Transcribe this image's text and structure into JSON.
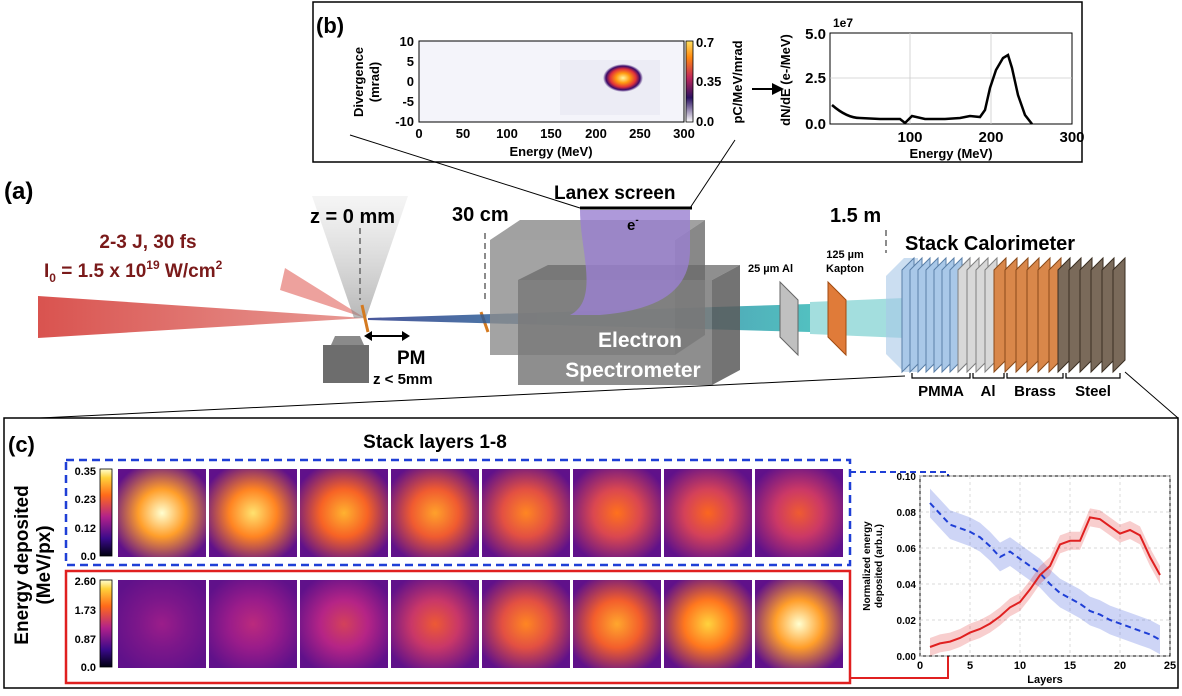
{
  "panel_labels": {
    "a": "(a)",
    "b": "(b)",
    "c": "(c)"
  },
  "laser": {
    "energy_line": "2-3 J, 30 fs",
    "intensity_prefix": "I",
    "intensity_sub": "0",
    "intensity_mid": " = 1.5 x 10",
    "intensity_sup": "19",
    "intensity_unit": " W/cm",
    "intensity_unit_sup": "2"
  },
  "setup": {
    "z0": "z = 0 mm",
    "pm": "PM",
    "pm_range": "z < 5mm",
    "dist_30cm": "30 cm",
    "dist_15m": "1.5 m",
    "lanex": "Lanex screen",
    "electron": "e",
    "electron_sup": "-",
    "spectrometer_line1": "Electron",
    "spectrometer_line2": "Spectrometer",
    "al_filter": "25 µm Al",
    "kapton_line1": "125 µm",
    "kapton_line2": "Kapton",
    "calorimeter": "Stack Calorimeter",
    "materials": [
      "PMMA",
      "Al",
      "Brass",
      "Steel"
    ]
  },
  "colors": {
    "laser": "#d9534f",
    "laser_text": "#7a1a1a",
    "blue": "#1f3fd6",
    "red": "#e02020",
    "lanex": "#9a7fd1",
    "kapton": "#e07b39"
  },
  "panel_b": {
    "image": {
      "xlabel": "Energy (MeV)",
      "ylabel_line1": "Divergence",
      "ylabel_line2": "(mrad)",
      "x_ticks": [
        "0",
        "50",
        "100",
        "150",
        "200",
        "250",
        "300"
      ],
      "y_ticks": [
        "10",
        "5",
        "0",
        "-5",
        "-10"
      ],
      "colorbar_label": "pC/MeV/mrad",
      "colorbar_ticks": [
        "0.7",
        "0.35",
        "0.0"
      ]
    },
    "spectrum": {
      "ylabel": "dN/dE (e-/MeV)",
      "xlabel": "Energy (MeV)",
      "scale": "1e7",
      "x_ticks": [
        "100",
        "200",
        "300"
      ],
      "y_ticks": [
        "5.0",
        "2.5",
        "0.0"
      ]
    }
  },
  "panel_c": {
    "title": "Stack layers 1-8",
    "ylabel_line1": "Energy deposited",
    "ylabel_line2": "(MeV/px)",
    "top_colorbar": [
      "0.35",
      "0.23",
      "0.12",
      "0.0"
    ],
    "bottom_colorbar": [
      "2.60",
      "1.73",
      "0.87",
      "0.0"
    ],
    "top_intensity": [
      1.0,
      0.9,
      0.75,
      0.7,
      0.62,
      0.56,
      0.52,
      0.46
    ],
    "bottom_intensity": [
      0.08,
      0.2,
      0.32,
      0.45,
      0.62,
      0.72,
      0.85,
      1.0
    ]
  },
  "chart_data": {
    "type": "line",
    "xlabel": "Layers",
    "ylabel": "Normalized energy deposited (arb.u.)",
    "xlim": [
      0,
      25
    ],
    "ylim": [
      0,
      0.1
    ],
    "x_ticks": [
      "0",
      "5",
      "10",
      "15",
      "20",
      "25"
    ],
    "y_ticks": [
      "0.00",
      "0.02",
      "0.04",
      "0.06",
      "0.08",
      "0.10"
    ],
    "x": [
      1,
      2,
      3,
      4,
      5,
      6,
      7,
      8,
      9,
      10,
      11,
      12,
      13,
      14,
      15,
      16,
      17,
      18,
      19,
      20,
      21,
      22,
      23,
      24
    ],
    "series": [
      {
        "style": "dashed",
        "color": "#1f3fd6",
        "values": [
          0.085,
          0.079,
          0.073,
          0.071,
          0.069,
          0.066,
          0.061,
          0.055,
          0.058,
          0.054,
          0.05,
          0.046,
          0.04,
          0.035,
          0.032,
          0.029,
          0.025,
          0.023,
          0.02,
          0.018,
          0.016,
          0.014,
          0.012,
          0.009
        ],
        "band": 0.008
      },
      {
        "style": "solid",
        "color": "#e02020",
        "values": [
          0.005,
          0.007,
          0.008,
          0.01,
          0.013,
          0.015,
          0.018,
          0.022,
          0.027,
          0.03,
          0.037,
          0.045,
          0.05,
          0.062,
          0.064,
          0.064,
          0.077,
          0.076,
          0.072,
          0.068,
          0.07,
          0.067,
          0.055,
          0.045
        ],
        "band": 0.005
      }
    ]
  }
}
